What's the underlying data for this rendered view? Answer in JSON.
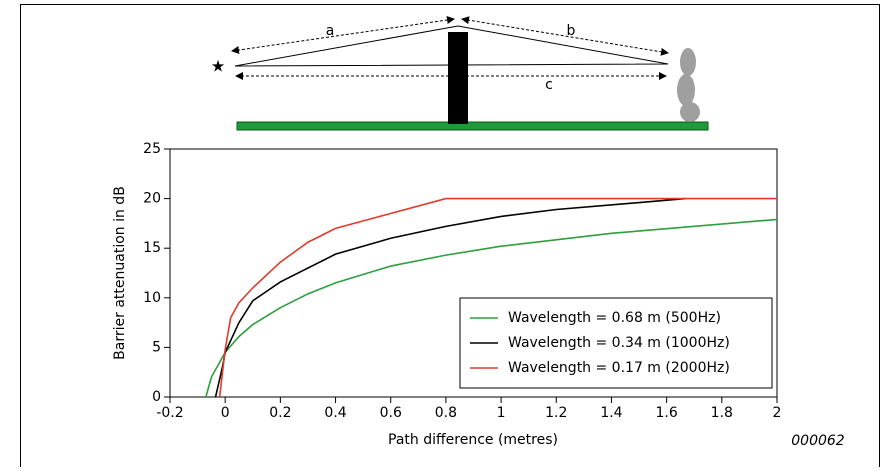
{
  "chart_data": {
    "type": "line",
    "diagram_labels": [
      "a",
      "b",
      "c"
    ],
    "figure_code": "000062",
    "xlabel": "Path difference (metres)",
    "ylabel": "Barrier attenuation in dB",
    "xlim": [
      -0.2,
      2
    ],
    "xticks": [
      -0.2,
      0,
      0.2,
      0.4,
      0.6,
      0.8,
      1,
      1.2,
      1.4,
      1.6,
      1.8,
      2
    ],
    "ylim": [
      0,
      25
    ],
    "yticks": [
      0,
      5,
      10,
      15,
      20,
      25
    ],
    "legend": "lower right",
    "series": [
      {
        "name": "Wavelength = 0.68 m (500Hz)",
        "color": "#2e9e3e",
        "x": [
          -0.07,
          -0.05,
          0,
          0.05,
          0.1,
          0.2,
          0.3,
          0.4,
          0.6,
          0.8,
          1.0,
          1.4,
          2.0
        ],
        "values": [
          0,
          2,
          4.5,
          6.1,
          7.3,
          9,
          10.4,
          11.5,
          13.2,
          14.3,
          15.2,
          16.5,
          17.9
        ]
      },
      {
        "name": "Wavelength = 0.34 m (1000Hz)",
        "color": "#000000",
        "x": [
          -0.035,
          -0.01,
          0,
          0.05,
          0.1,
          0.2,
          0.4,
          0.6,
          0.8,
          1.0,
          1.2,
          1.67
        ],
        "values": [
          0,
          3,
          4.5,
          7.5,
          9.7,
          11.6,
          14.4,
          16,
          17.2,
          18.2,
          18.9,
          20
        ]
      },
      {
        "name": "Wavelength = 0.17 m (2000Hz)",
        "color": "#e03a2a",
        "x": [
          -0.02,
          0,
          0.02,
          0.05,
          0.1,
          0.2,
          0.3,
          0.4,
          0.8,
          2.0
        ],
        "values": [
          0,
          4.8,
          8,
          9.5,
          11,
          13.6,
          15.6,
          17,
          20,
          20
        ]
      }
    ]
  }
}
